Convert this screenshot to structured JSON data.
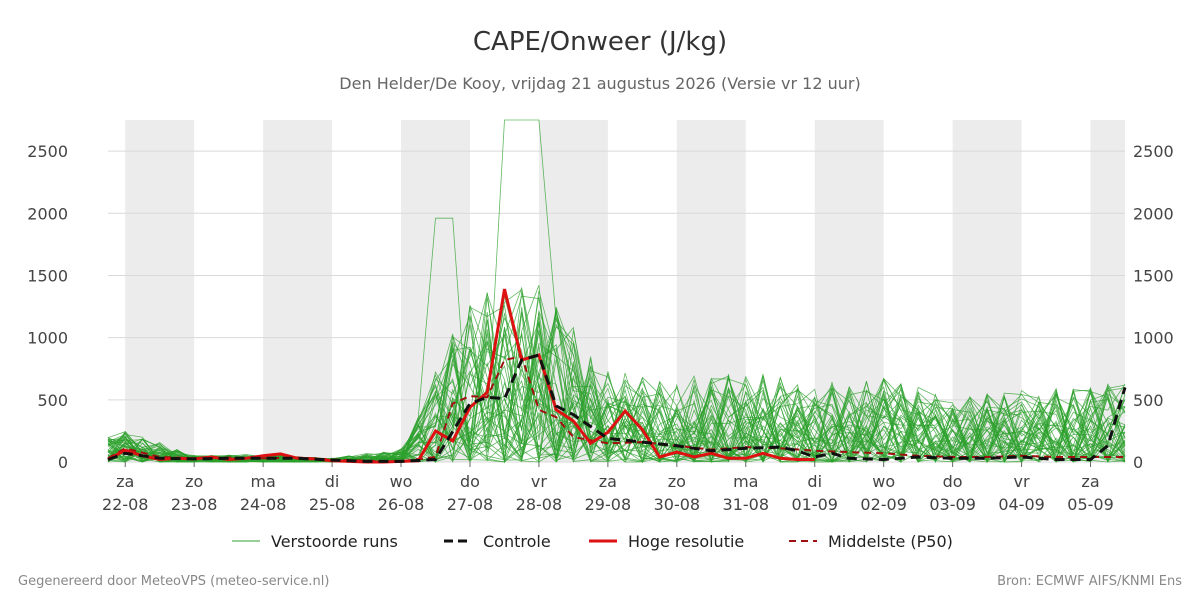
{
  "title": "CAPE/Onweer (J/kg)",
  "subtitle": "Den Helder/De Kooy, vrijdag 21 augustus 2026 (Versie vr 12 uur)",
  "footer_left": "Gegenereerd door MeteoVPS (meteo-service.nl)",
  "footer_right": "Bron: ECMWF AIFS/KNMI Ens",
  "colors": {
    "grid": "#d9d9d9",
    "band": "#ececec",
    "perturbed": "#2ca02c",
    "control": "#111111",
    "high_res": "#dd1111",
    "median": "#a01010"
  },
  "chart_data": {
    "type": "line",
    "title": "CAPE/Onweer (J/kg)",
    "xlabel": "",
    "ylabel": "",
    "ylim": [
      0,
      2750
    ],
    "yticks": [
      0,
      500,
      1000,
      1500,
      2000,
      2500
    ],
    "x_range_days": [
      21.75,
      36.5
    ],
    "x_unit": "days (day-of-month index; 22 = 22-08 00:00)",
    "grid": "horizontal",
    "legend_position": "bottom",
    "weekend_bands_days": [
      [
        22,
        23
      ],
      [
        24,
        25
      ],
      [
        26,
        27
      ],
      [
        28,
        29
      ],
      [
        30,
        31
      ],
      [
        32,
        33
      ],
      [
        34,
        35
      ],
      [
        36,
        36.5
      ]
    ],
    "day_ticks": [
      {
        "x": 22,
        "weekday": "za",
        "date": "22-08"
      },
      {
        "x": 23,
        "weekday": "zo",
        "date": "23-08"
      },
      {
        "x": 24,
        "weekday": "ma",
        "date": "24-08"
      },
      {
        "x": 25,
        "weekday": "di",
        "date": "25-08"
      },
      {
        "x": 26,
        "weekday": "wo",
        "date": "26-08"
      },
      {
        "x": 27,
        "weekday": "do",
        "date": "27-08"
      },
      {
        "x": 28,
        "weekday": "vr",
        "date": "28-08"
      },
      {
        "x": 29,
        "weekday": "za",
        "date": "29-08"
      },
      {
        "x": 30,
        "weekday": "zo",
        "date": "30-08"
      },
      {
        "x": 31,
        "weekday": "ma",
        "date": "31-08"
      },
      {
        "x": 32,
        "weekday": "di",
        "date": "01-09"
      },
      {
        "x": 33,
        "weekday": "wo",
        "date": "02-09"
      },
      {
        "x": 34,
        "weekday": "do",
        "date": "03-09"
      },
      {
        "x": 35,
        "weekday": "vr",
        "date": "04-09"
      },
      {
        "x": 36,
        "weekday": "za",
        "date": "05-09"
      }
    ],
    "legend": [
      {
        "key": "perturbed",
        "label": "Verstoorde runs",
        "style": "thin"
      },
      {
        "key": "control",
        "label": "Controle",
        "style": "dashed-bold"
      },
      {
        "key": "high_res",
        "label": "Hoge resolutie",
        "style": "solid-bold"
      },
      {
        "key": "median",
        "label": "Middelste (P50)",
        "style": "dashed"
      }
    ],
    "series": [
      {
        "name": "Hoge resolutie",
        "key": "high_res",
        "x": [
          21.75,
          22.0,
          22.25,
          22.5,
          22.75,
          23.0,
          23.25,
          23.5,
          23.75,
          24.0,
          24.25,
          24.5,
          24.75,
          25.0,
          25.25,
          25.5,
          25.75,
          26.0,
          26.25,
          26.5,
          26.75,
          27.0,
          27.25,
          27.5,
          27.75,
          28.0,
          28.25,
          28.5,
          28.75,
          29.0,
          29.25,
          29.5,
          29.75,
          30.0,
          30.25,
          30.5,
          30.75,
          31.0,
          31.25,
          31.5,
          31.75,
          32.0
        ],
        "values": [
          20,
          95,
          50,
          20,
          30,
          25,
          40,
          20,
          30,
          50,
          65,
          30,
          25,
          10,
          5,
          0,
          0,
          5,
          10,
          250,
          170,
          440,
          560,
          1390,
          820,
          860,
          420,
          330,
          150,
          240,
          410,
          260,
          40,
          80,
          40,
          70,
          30,
          30,
          70,
          30,
          20,
          20
        ]
      },
      {
        "name": "Controle",
        "key": "control",
        "x": [
          21.75,
          22.0,
          22.5,
          23.0,
          23.5,
          24.0,
          24.5,
          25.0,
          25.5,
          26.0,
          26.5,
          27.0,
          27.25,
          27.5,
          27.75,
          28.0,
          28.25,
          28.5,
          29.0,
          29.5,
          30.0,
          30.5,
          31.0,
          31.5,
          31.75,
          32.0,
          32.25,
          32.5,
          33.0,
          33.5,
          34.0,
          34.5,
          35.0,
          35.5,
          36.0,
          36.25,
          36.5
        ],
        "values": [
          20,
          70,
          30,
          25,
          30,
          30,
          30,
          15,
          5,
          5,
          20,
          470,
          520,
          510,
          820,
          860,
          450,
          380,
          190,
          160,
          130,
          90,
          110,
          120,
          90,
          40,
          70,
          30,
          20,
          40,
          30,
          30,
          40,
          20,
          20,
          130,
          600
        ]
      },
      {
        "name": "Middelste (P50)",
        "key": "median",
        "x": [
          21.75,
          22.0,
          22.5,
          23.0,
          23.5,
          24.0,
          24.5,
          25.0,
          25.5,
          26.0,
          26.5,
          26.75,
          27.0,
          27.25,
          27.5,
          27.75,
          28.0,
          28.25,
          28.5,
          29.0,
          29.5,
          30.0,
          30.5,
          31.0,
          31.5,
          32.0,
          32.5,
          33.0,
          33.5,
          34.0,
          34.5,
          35.0,
          35.5,
          36.0,
          36.5
        ],
        "values": [
          30,
          110,
          40,
          30,
          35,
          30,
          35,
          20,
          10,
          5,
          40,
          470,
          530,
          520,
          820,
          850,
          420,
          360,
          200,
          150,
          160,
          130,
          100,
          120,
          110,
          90,
          80,
          70,
          50,
          40,
          40,
          50,
          40,
          40,
          40
        ]
      }
    ],
    "perturbed_runs": {
      "count": 50,
      "value_range": [
        0,
        2750
      ],
      "peak_max": 2750,
      "peak_x": 27.75,
      "notes_envelope_p90_by_day": {
        "22": 250,
        "23": 50,
        "24": 60,
        "25": 30,
        "26": 100,
        "27": 1300,
        "28": 1400,
        "29": 700,
        "30": 650,
        "31": 700,
        "32": 600,
        "33": 650,
        "34": 500,
        "35": 550,
        "36": 600
      }
    }
  }
}
